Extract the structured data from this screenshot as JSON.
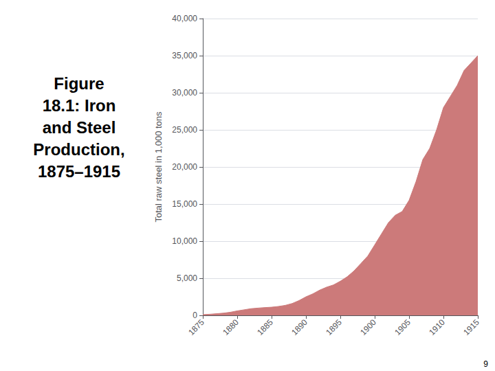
{
  "chart_data": {
    "type": "area",
    "title": "Figure\n18.1: Iron\nand Steel\nProduction,\n1875–1915",
    "ylabel": "Total raw steel in 1,000 tons",
    "annotations": [
      "9"
    ],
    "color": "#cc7a7a",
    "x": [
      1875,
      1876,
      1877,
      1878,
      1879,
      1880,
      1881,
      1882,
      1883,
      1884,
      1885,
      1886,
      1887,
      1888,
      1889,
      1890,
      1891,
      1892,
      1893,
      1894,
      1895,
      1896,
      1897,
      1898,
      1899,
      1900,
      1901,
      1902,
      1903,
      1904,
      1905,
      1906,
      1907,
      1908,
      1909,
      1910,
      1911,
      1912,
      1913,
      1914,
      1915
    ],
    "values": [
      100,
      150,
      220,
      300,
      420,
      600,
      750,
      900,
      980,
      1050,
      1100,
      1200,
      1350,
      1600,
      2000,
      2500,
      2900,
      3400,
      3800,
      4100,
      4600,
      5200,
      6000,
      7000,
      8000,
      9500,
      11000,
      12500,
      13500,
      14000,
      15500,
      18000,
      21000,
      22500,
      25000,
      28000,
      29500,
      31000,
      33000,
      34000,
      35000
    ],
    "xlim": [
      1875,
      1915
    ],
    "xticks": [
      1875,
      1880,
      1885,
      1890,
      1895,
      1900,
      1905,
      1910,
      1915
    ],
    "ylim": [
      0,
      40000
    ],
    "yticks": [
      0,
      {
        "value": 5000,
        "label": "5,000"
      },
      {
        "value": 10000,
        "label": "10,000"
      },
      {
        "value": 15000,
        "label": "15,000"
      },
      {
        "value": 20000,
        "label": "20,000"
      },
      {
        "value": 25000,
        "label": "25,000"
      },
      {
        "value": 30000,
        "label": "30,000"
      },
      {
        "value": 35000,
        "label": "35,000"
      },
      {
        "value": 40000,
        "label": "40,000"
      }
    ],
    "grid": true
  }
}
